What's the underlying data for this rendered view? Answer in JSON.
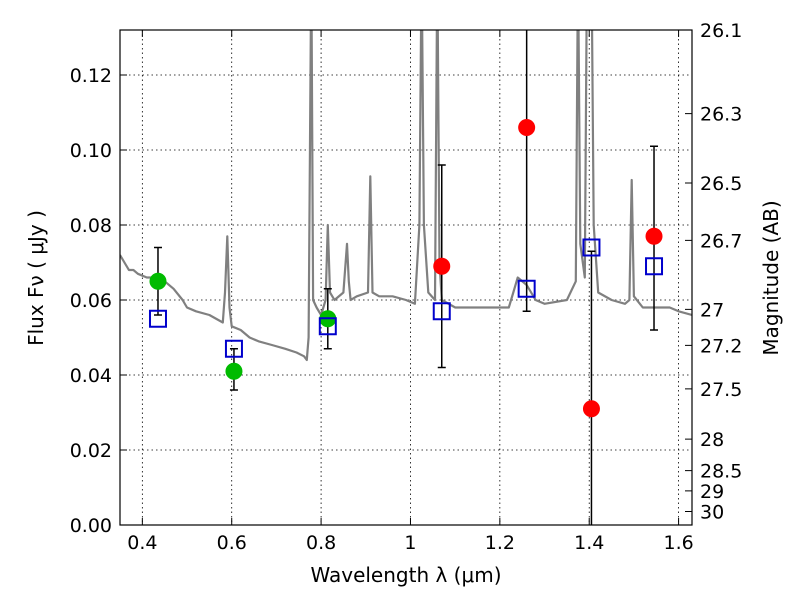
{
  "chart_data": {
    "type": "scatter",
    "xlabel": "Wavelength  λ (μm)",
    "ylabel": "Flux  Fν  ( μJy )",
    "y2label": "Magnitude (AB)",
    "xlim": [
      0.35,
      1.63
    ],
    "ylim": [
      0.0,
      0.132
    ],
    "grid": true,
    "x_ticks": [
      0.4,
      0.6,
      0.8,
      1.0,
      1.2,
      1.4,
      1.6
    ],
    "x_tick_labels": [
      "0.4",
      "0.6",
      "0.8",
      "1",
      "1.2",
      "1.4",
      "1.6"
    ],
    "y_ticks": [
      0.0,
      0.02,
      0.04,
      0.06,
      0.08,
      0.1,
      0.12
    ],
    "y_tick_labels": [
      "0.00",
      "0.02",
      "0.04",
      "0.06",
      "0.08",
      "0.10",
      "0.12"
    ],
    "y2_ticks": [
      {
        "label": "26.1",
        "flux": 0.132
      },
      {
        "label": "26.3",
        "flux": 0.1097
      },
      {
        "label": "26.5",
        "flux": 0.0912
      },
      {
        "label": "26.7",
        "flux": 0.0759
      },
      {
        "label": "27",
        "flux": 0.0575
      },
      {
        "label": "27.2",
        "flux": 0.0479
      },
      {
        "label": "27.5",
        "flux": 0.0363
      },
      {
        "label": "28",
        "flux": 0.0229
      },
      {
        "label": "28.5",
        "flux": 0.0145
      },
      {
        "label": "29",
        "flux": 0.0091
      },
      {
        "label": "30",
        "flux": 0.0036
      }
    ],
    "series": [
      {
        "kind": "line",
        "color": "#808080",
        "x": [
          0.35,
          0.37,
          0.38,
          0.39,
          0.41,
          0.43,
          0.45,
          0.47,
          0.49,
          0.5,
          0.52,
          0.55,
          0.58,
          0.585,
          0.59,
          0.595,
          0.6,
          0.62,
          0.64,
          0.66,
          0.69,
          0.72,
          0.745,
          0.762,
          0.768,
          0.772,
          0.778,
          0.782,
          0.79,
          0.8,
          0.81,
          0.815,
          0.82,
          0.825,
          0.83,
          0.85,
          0.858,
          0.862,
          0.866,
          0.88,
          0.905,
          0.91,
          0.915,
          0.93,
          0.96,
          0.99,
          1.01,
          1.02,
          1.025,
          1.03,
          1.04,
          1.055,
          1.06,
          1.065,
          1.07,
          1.1,
          1.15,
          1.2,
          1.22,
          1.23,
          1.24,
          1.26,
          1.28,
          1.3,
          1.35,
          1.37,
          1.375,
          1.38,
          1.39,
          1.395,
          1.4,
          1.405,
          1.41,
          1.42,
          1.45,
          1.48,
          1.49,
          1.495,
          1.5,
          1.52,
          1.55,
          1.58,
          1.6,
          1.63
        ],
        "y": [
          0.072,
          0.068,
          0.068,
          0.067,
          0.066,
          0.066,
          0.065,
          0.063,
          0.06,
          0.058,
          0.057,
          0.056,
          0.054,
          0.062,
          0.077,
          0.058,
          0.053,
          0.052,
          0.05,
          0.049,
          0.048,
          0.047,
          0.046,
          0.045,
          0.044,
          0.05,
          0.15,
          0.06,
          0.058,
          0.056,
          0.06,
          0.08,
          0.062,
          0.061,
          0.06,
          0.062,
          0.075,
          0.065,
          0.06,
          0.061,
          0.062,
          0.093,
          0.062,
          0.061,
          0.061,
          0.06,
          0.059,
          0.08,
          0.15,
          0.08,
          0.062,
          0.06,
          0.15,
          0.07,
          0.06,
          0.058,
          0.058,
          0.058,
          0.058,
          0.062,
          0.066,
          0.064,
          0.06,
          0.059,
          0.06,
          0.065,
          0.15,
          0.075,
          0.066,
          0.15,
          0.15,
          0.15,
          0.08,
          0.062,
          0.06,
          0.059,
          0.06,
          0.092,
          0.061,
          0.058,
          0.058,
          0.058,
          0.057,
          0.056
        ]
      },
      {
        "kind": "points-with-errorbars",
        "marker": "circle",
        "color": "#00bb00",
        "x": [
          0.435,
          0.605,
          0.815
        ],
        "y": [
          0.065,
          0.041,
          0.055
        ],
        "yerr_low": [
          0.056,
          0.036,
          0.047
        ],
        "yerr_high": [
          0.074,
          0.047,
          0.063
        ]
      },
      {
        "kind": "points-with-errorbars",
        "marker": "circle",
        "color": "#ff0000",
        "x": [
          1.07,
          1.26,
          1.405,
          1.545
        ],
        "y": [
          0.069,
          0.106,
          0.031,
          0.077
        ],
        "yerr_low": [
          0.042,
          0.057,
          0.0,
          0.052
        ],
        "yerr_high": [
          0.096,
          0.132,
          0.073,
          0.101
        ]
      },
      {
        "kind": "points",
        "marker": "open-square",
        "color": "#0000cc",
        "x": [
          0.435,
          0.605,
          0.815,
          1.07,
          1.26,
          1.405,
          1.545
        ],
        "y": [
          0.055,
          0.047,
          0.053,
          0.057,
          0.063,
          0.074,
          0.069
        ]
      }
    ]
  }
}
